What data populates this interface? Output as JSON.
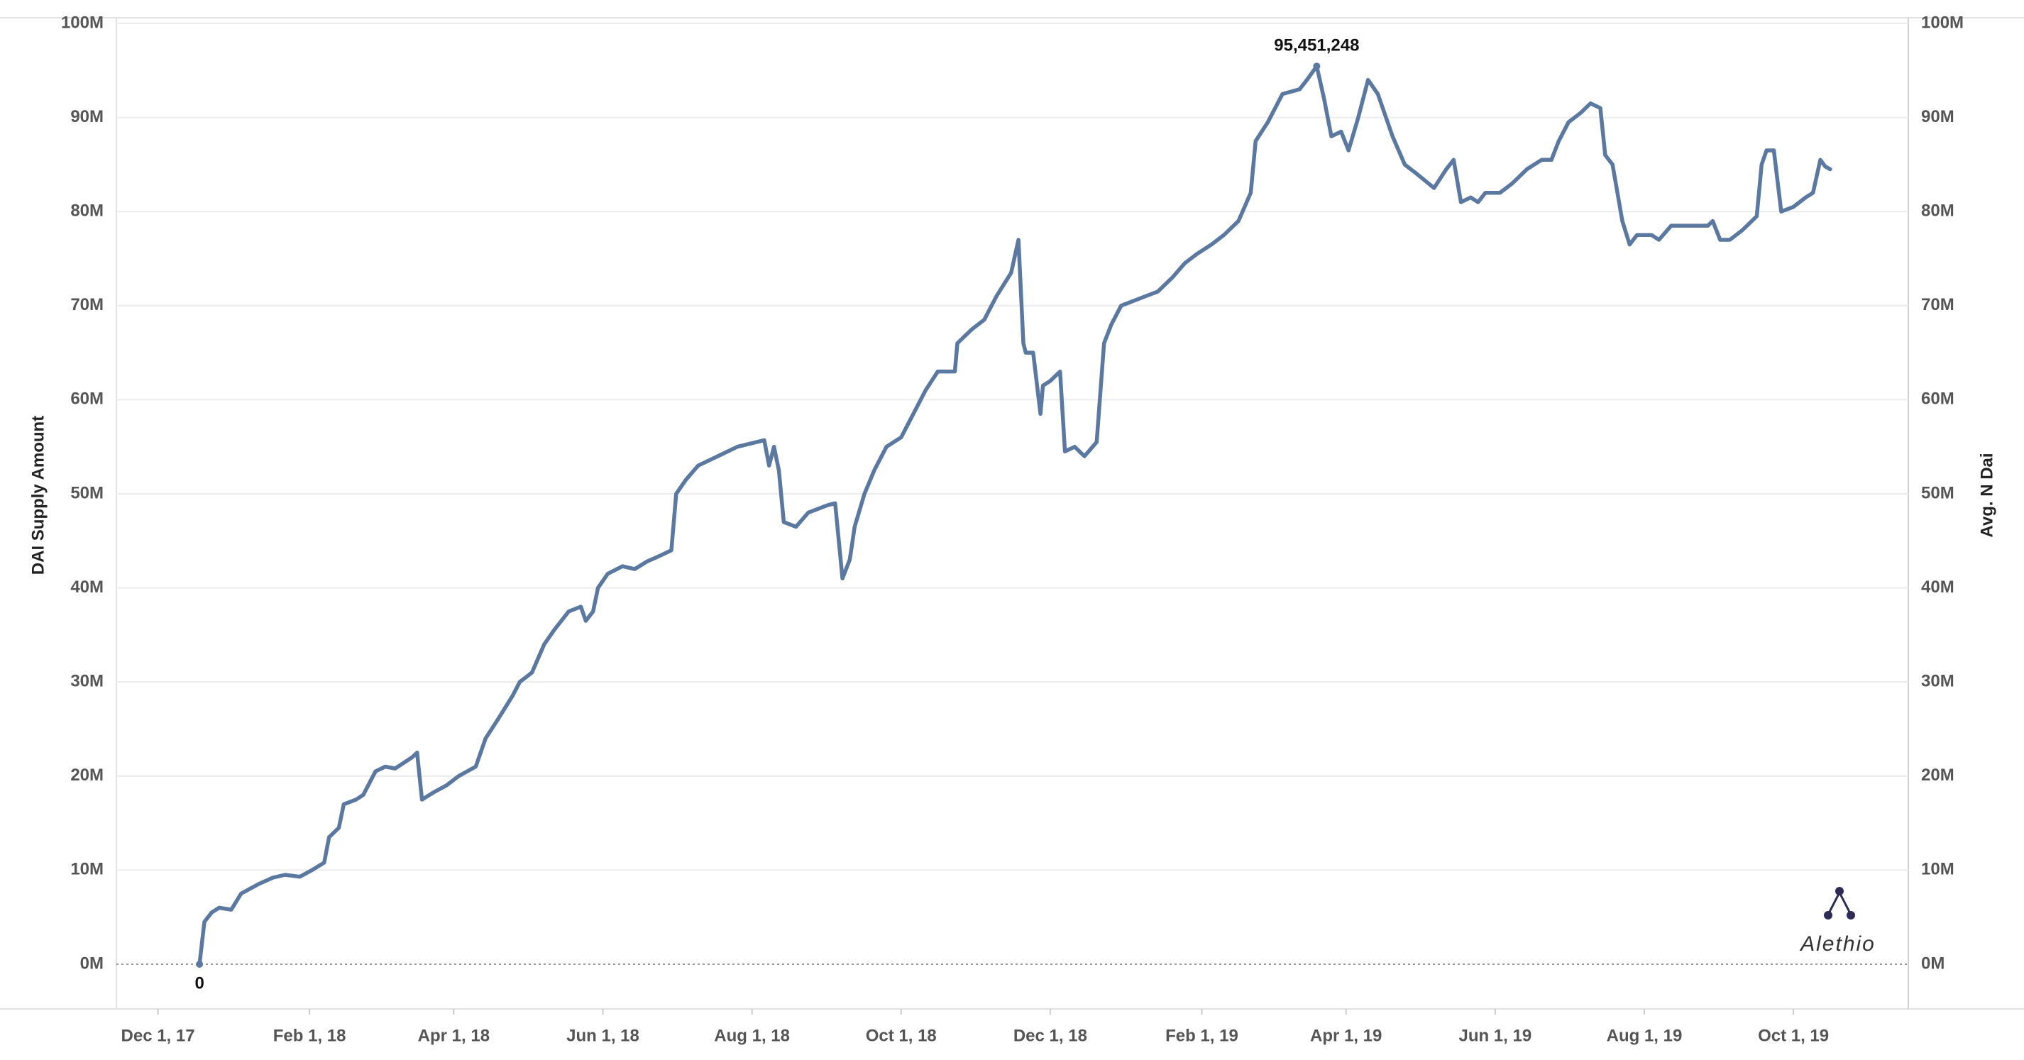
{
  "chart_data": {
    "type": "line",
    "y_label": "DAI Supply Amount",
    "y2_label": "Avg. N Dai",
    "logo": "Alethio",
    "x": [
      "2017-12-18",
      "2017-12-20",
      "2017-12-23",
      "2017-12-26",
      "2017-12-31",
      "2018-01-04",
      "2018-01-11",
      "2018-01-17",
      "2018-01-22",
      "2018-01-28",
      "2018-02-02",
      "2018-02-07",
      "2018-02-09",
      "2018-02-13",
      "2018-02-15",
      "2018-02-20",
      "2018-02-23",
      "2018-02-28",
      "2018-03-04",
      "2018-03-08",
      "2018-03-15",
      "2018-03-17",
      "2018-03-19",
      "2018-03-24",
      "2018-03-29",
      "2018-04-03",
      "2018-04-10",
      "2018-04-14",
      "2018-04-19",
      "2018-04-25",
      "2018-04-28",
      "2018-05-03",
      "2018-05-08",
      "2018-05-12",
      "2018-05-18",
      "2018-05-23",
      "2018-05-25",
      "2018-05-28",
      "2018-05-30",
      "2018-06-03",
      "2018-06-09",
      "2018-06-14",
      "2018-06-19",
      "2018-06-25",
      "2018-06-29",
      "2018-07-01",
      "2018-07-05",
      "2018-07-10",
      "2018-07-18",
      "2018-07-26",
      "2018-08-06",
      "2018-08-08",
      "2018-08-10",
      "2018-08-12",
      "2018-08-14",
      "2018-08-19",
      "2018-08-24",
      "2018-09-01",
      "2018-09-04",
      "2018-09-07",
      "2018-09-10",
      "2018-09-12",
      "2018-09-16",
      "2018-09-20",
      "2018-09-25",
      "2018-10-01",
      "2018-10-06",
      "2018-10-11",
      "2018-10-16",
      "2018-10-23",
      "2018-10-24",
      "2018-10-30",
      "2018-11-04",
      "2018-11-09",
      "2018-11-15",
      "2018-11-18",
      "2018-11-20",
      "2018-11-21",
      "2018-11-24",
      "2018-11-27",
      "2018-11-28",
      "2018-12-01",
      "2018-12-05",
      "2018-12-07",
      "2018-12-11",
      "2018-12-15",
      "2018-12-20",
      "2018-12-23",
      "2018-12-26",
      "2018-12-30",
      "2019-01-04",
      "2019-01-09",
      "2019-01-14",
      "2019-01-20",
      "2019-01-25",
      "2019-01-30",
      "2019-02-05",
      "2019-02-10",
      "2019-02-16",
      "2019-02-21",
      "2019-02-23",
      "2019-02-28",
      "2019-03-06",
      "2019-03-13",
      "2019-03-16",
      "2019-03-20",
      "2019-03-23",
      "2019-03-26",
      "2019-03-30",
      "2019-04-02",
      "2019-04-06",
      "2019-04-10",
      "2019-04-14",
      "2019-04-20",
      "2019-04-25",
      "2019-04-30",
      "2019-05-07",
      "2019-05-12",
      "2019-05-15",
      "2019-05-18",
      "2019-05-22",
      "2019-05-25",
      "2019-05-28",
      "2019-06-03",
      "2019-06-08",
      "2019-06-14",
      "2019-06-20",
      "2019-06-24",
      "2019-06-27",
      "2019-07-01",
      "2019-07-06",
      "2019-07-10",
      "2019-07-14",
      "2019-07-16",
      "2019-07-19",
      "2019-07-23",
      "2019-07-26",
      "2019-07-29",
      "2019-08-04",
      "2019-08-07",
      "2019-08-12",
      "2019-08-17",
      "2019-08-22",
      "2019-08-27",
      "2019-08-29",
      "2019-09-01",
      "2019-09-05",
      "2019-09-10",
      "2019-09-14",
      "2019-09-16",
      "2019-09-18",
      "2019-09-20",
      "2019-09-23",
      "2019-09-26",
      "2019-10-01",
      "2019-10-06",
      "2019-10-09",
      "2019-10-12",
      "2019-10-14",
      "2019-10-16"
    ],
    "series": [
      {
        "name": "DAI Supply Amount",
        "color": "#5a78a0",
        "values": [
          0,
          4500000,
          5500000,
          6000000,
          5800000,
          7500000,
          8500000,
          9200000,
          9500000,
          9300000,
          10000000,
          10800000,
          13500000,
          14500000,
          17000000,
          17500000,
          18000000,
          20500000,
          21000000,
          20800000,
          22000000,
          22500000,
          17500000,
          18300000,
          19000000,
          20000000,
          21000000,
          24000000,
          26000000,
          28500000,
          30000000,
          31000000,
          34000000,
          35500000,
          37500000,
          38000000,
          36500000,
          37500000,
          40000000,
          41500000,
          42300000,
          42000000,
          42800000,
          43500000,
          44000000,
          50000000,
          51500000,
          53000000,
          54000000,
          55000000,
          55700000,
          53000000,
          55000000,
          52500000,
          47000000,
          46500000,
          48000000,
          48800000,
          49000000,
          41000000,
          43000000,
          46500000,
          50000000,
          52500000,
          55000000,
          56000000,
          58500000,
          61000000,
          63000000,
          63000000,
          66000000,
          67500000,
          68500000,
          71000000,
          73500000,
          77000000,
          66000000,
          65000000,
          65000000,
          58500000,
          61500000,
          62000000,
          63000000,
          54500000,
          55000000,
          54000000,
          55500000,
          66000000,
          68000000,
          70000000,
          70500000,
          71000000,
          71500000,
          73000000,
          74500000,
          75500000,
          76500000,
          77500000,
          79000000,
          82000000,
          87500000,
          89500000,
          92500000,
          93000000,
          94000000,
          95451248,
          92000000,
          88000000,
          88500000,
          86500000,
          90000000,
          94000000,
          92500000,
          88000000,
          85000000,
          84000000,
          82500000,
          84500000,
          85500000,
          81000000,
          81500000,
          81000000,
          82000000,
          82000000,
          83000000,
          84500000,
          85500000,
          85500000,
          87500000,
          89500000,
          90500000,
          91500000,
          91000000,
          86000000,
          85000000,
          79000000,
          76500000,
          77500000,
          77500000,
          77000000,
          78500000,
          78500000,
          78500000,
          78500000,
          79000000,
          77000000,
          77000000,
          78000000,
          79000000,
          79500000,
          85000000,
          86500000,
          86500000,
          80000000,
          80500000,
          81500000,
          82000000,
          85500000,
          84800000,
          84500000
        ]
      }
    ],
    "annotations": [
      {
        "text": "95,451,248",
        "x": "2019-03-20",
        "y": 95451248
      },
      {
        "text": "0",
        "x": "2017-12-18",
        "y": 0
      }
    ],
    "xlim": [
      "2017-11-14",
      "2019-11-17"
    ],
    "xticks": [
      {
        "value": "2017-12-01",
        "label": "Dec 1, 17"
      },
      {
        "value": "2018-02-01",
        "label": "Feb 1, 18"
      },
      {
        "value": "2018-04-01",
        "label": "Apr 1, 18"
      },
      {
        "value": "2018-06-01",
        "label": "Jun 1, 18"
      },
      {
        "value": "2018-08-01",
        "label": "Aug 1, 18"
      },
      {
        "value": "2018-10-01",
        "label": "Oct 1, 18"
      },
      {
        "value": "2018-12-01",
        "label": "Dec 1, 18"
      },
      {
        "value": "2019-02-01",
        "label": "Feb 1, 19"
      },
      {
        "value": "2019-04-01",
        "label": "Apr 1, 19"
      },
      {
        "value": "2019-06-01",
        "label": "Jun 1, 19"
      },
      {
        "value": "2019-08-01",
        "label": "Aug 1, 19"
      },
      {
        "value": "2019-10-01",
        "label": "Oct 1, 19"
      }
    ],
    "ylim": [
      0,
      100000000
    ],
    "yticks": [
      {
        "value": 0,
        "label": "0M"
      },
      {
        "value": 10000000,
        "label": "10M"
      },
      {
        "value": 20000000,
        "label": "20M"
      },
      {
        "value": 30000000,
        "label": "30M"
      },
      {
        "value": 40000000,
        "label": "40M"
      },
      {
        "value": 50000000,
        "label": "50M"
      },
      {
        "value": 60000000,
        "label": "60M"
      },
      {
        "value": 70000000,
        "label": "70M"
      },
      {
        "value": 80000000,
        "label": "80M"
      },
      {
        "value": 90000000,
        "label": "90M"
      },
      {
        "value": 100000000,
        "label": "100M"
      }
    ],
    "y2lim": [
      0,
      100000000
    ],
    "y2ticks": [
      {
        "value": 0,
        "label": "0M"
      },
      {
        "value": 10000000,
        "label": "10M"
      },
      {
        "value": 20000000,
        "label": "20M"
      },
      {
        "value": 30000000,
        "label": "30M"
      },
      {
        "value": 40000000,
        "label": "40M"
      },
      {
        "value": 50000000,
        "label": "50M"
      },
      {
        "value": 60000000,
        "label": "60M"
      },
      {
        "value": 70000000,
        "label": "70M"
      },
      {
        "value": 80000000,
        "label": "80M"
      },
      {
        "value": 90000000,
        "label": "90M"
      },
      {
        "value": 100000000,
        "label": "100M"
      }
    ],
    "grid": true
  }
}
